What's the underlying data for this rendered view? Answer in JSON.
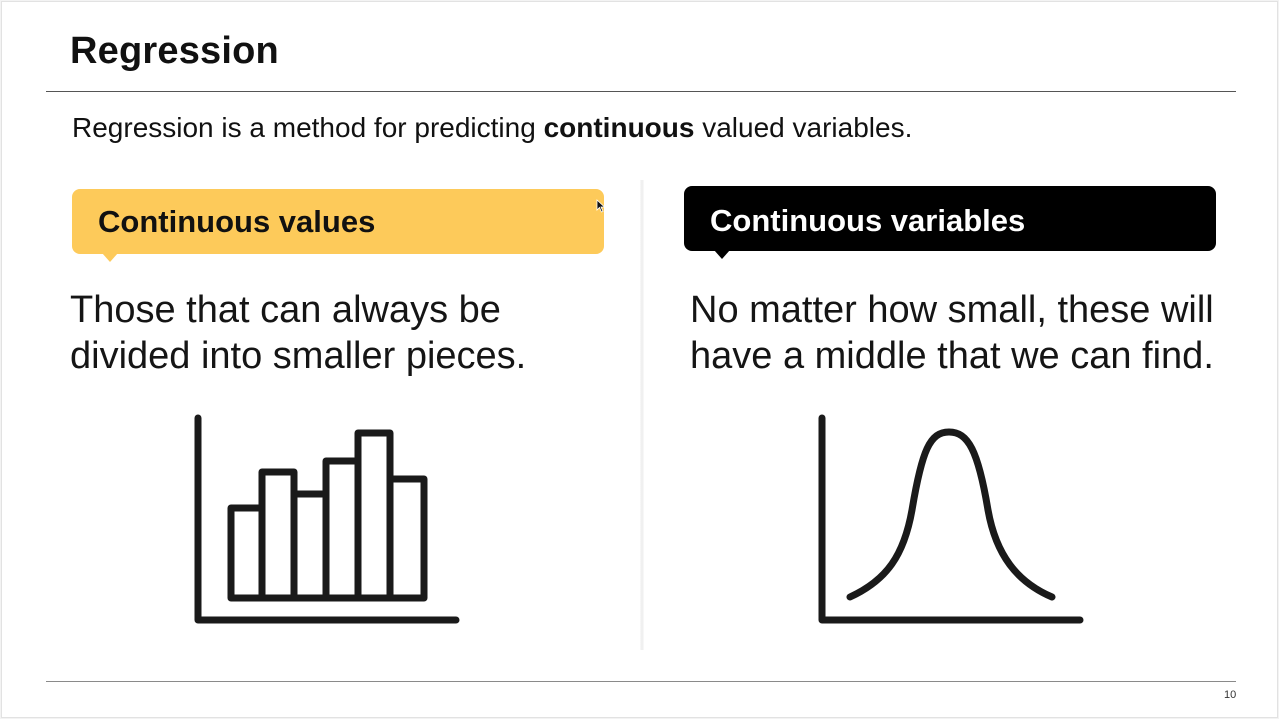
{
  "slide": {
    "title": "Regression",
    "subtitle": {
      "before": "Regression is a method for predicting ",
      "bold": "continuous",
      "after": " valued variables."
    },
    "left": {
      "callout": "Continuous values",
      "description": "Those that can always be\ndivided into smaller pieces.",
      "icon": "bar-chart-icon",
      "callout_color": "#fdca5a"
    },
    "right": {
      "callout": "Continuous variables",
      "description": "No matter how small, these will\nhave a middle that we can find.",
      "icon": "bell-curve-icon",
      "callout_color": "#000000"
    },
    "page_number": "10"
  }
}
